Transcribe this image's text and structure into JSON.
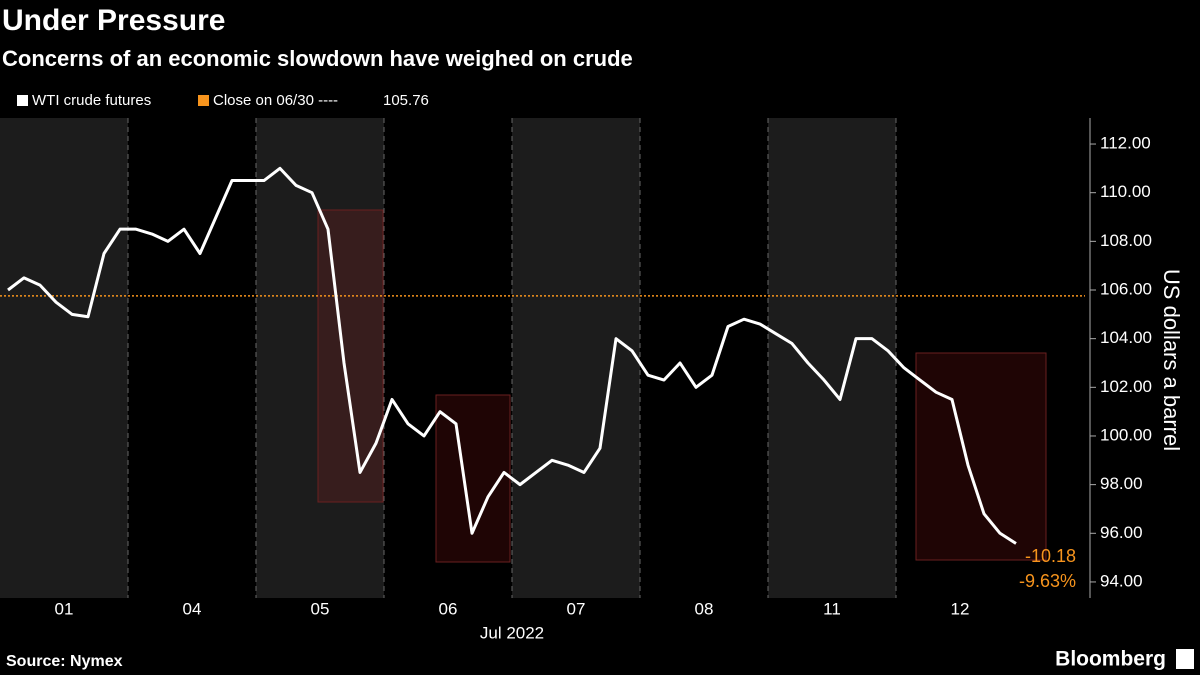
{
  "chart_data": {
    "type": "line",
    "title": "Under Pressure",
    "subtitle": "Concerns of an economic slowdown have weighed on crude",
    "x_label": "Jul 2022",
    "y_label": "US dollars a barrel",
    "source": "Source: Nymex",
    "brand": "Bloomberg",
    "categories": [
      null,
      null,
      null,
      null,
      "01",
      null,
      null,
      null,
      null,
      null,
      null,
      null,
      "04",
      null,
      null,
      null,
      null,
      null,
      null,
      null,
      "05",
      null,
      null,
      null,
      null,
      null,
      null,
      null,
      "06",
      null,
      null,
      null,
      null,
      null,
      null,
      null,
      "07",
      null,
      null,
      null,
      null,
      null,
      null,
      null,
      "08",
      null,
      null,
      null,
      null,
      null,
      null,
      null,
      "11",
      null,
      null,
      null,
      null,
      null,
      null,
      null,
      "12",
      null,
      null,
      null
    ],
    "series": [
      {
        "name": "WTI crude futures",
        "color": "#ffffff",
        "values": [
          106.0,
          106.5,
          106.2,
          105.5,
          105.0,
          104.9,
          107.5,
          108.5,
          108.5,
          108.3,
          108.0,
          108.5,
          107.5,
          109.0,
          110.5,
          110.5,
          110.5,
          111.0,
          110.3,
          110.0,
          108.5,
          103.0,
          98.5,
          99.7,
          101.5,
          100.5,
          100.0,
          101.0,
          100.5,
          96.0,
          97.5,
          98.5,
          98.0,
          98.5,
          99.0,
          98.8,
          98.5,
          99.5,
          104.0,
          103.5,
          102.5,
          102.3,
          103.0,
          102.0,
          102.5,
          104.5,
          104.8,
          104.6,
          104.2,
          103.8,
          103.0,
          102.3,
          101.5,
          104.0,
          104.0,
          103.5,
          102.8,
          102.3,
          101.8,
          101.5,
          98.8,
          96.8,
          96.0,
          95.58
        ]
      }
    ],
    "reference_line": {
      "label": "Close on 06/30 ----",
      "value": 105.76,
      "color": "#f7941d"
    },
    "annotations": [
      "-10.18",
      "-9.63%"
    ],
    "annotation_color": "#f7941d",
    "ylim": [
      93.34,
      113.07
    ],
    "yticks": [
      {
        "value": 94,
        "label": "94.00"
      },
      {
        "value": 96,
        "label": "96.00"
      },
      {
        "value": 98,
        "label": "98.00"
      },
      {
        "value": 100,
        "label": "100.00"
      },
      {
        "value": 102,
        "label": "102.00"
      },
      {
        "value": 104,
        "label": "104.00"
      },
      {
        "value": 106,
        "label": "106.00"
      },
      {
        "value": 108,
        "label": "108.00"
      },
      {
        "value": 110,
        "label": "110.00"
      },
      {
        "value": 112,
        "label": "112.00"
      }
    ],
    "grid": false
  }
}
